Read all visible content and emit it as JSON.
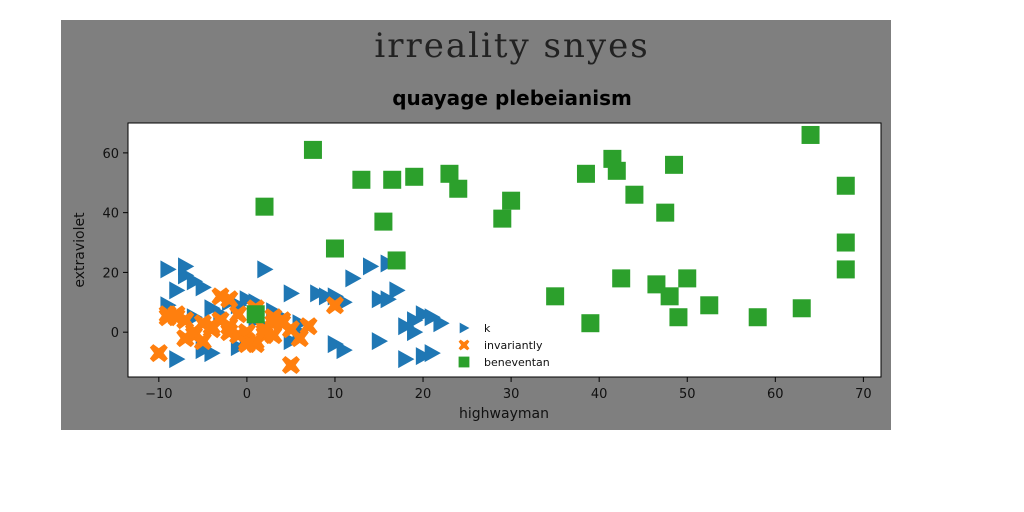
{
  "figure_title": "irreality snyes",
  "chart_data": {
    "type": "scatter",
    "title": "quayage plebeianism",
    "xlabel": "highwayman",
    "ylabel": "extraviolet",
    "xlim": [
      -13.5,
      72
    ],
    "ylim": [
      -15,
      70
    ],
    "xticks": [
      -10,
      0,
      10,
      20,
      30,
      40,
      50,
      60,
      70
    ],
    "yticks": [
      0,
      20,
      40,
      60
    ],
    "xtick_labels": [
      "−10",
      "0",
      "10",
      "20",
      "30",
      "40",
      "50",
      "60",
      "70"
    ],
    "ytick_labels": [
      "0",
      "20",
      "40",
      "60"
    ],
    "grid": false,
    "legend_position": "lower-center",
    "series": [
      {
        "name": "k",
        "marker": "triangle-right",
        "color": "#1f77b4",
        "x": [
          -9,
          -8,
          -7,
          -6,
          -5,
          -4,
          -3,
          -2,
          -1,
          0,
          1,
          2,
          3,
          4,
          5,
          6,
          8,
          9,
          10,
          11,
          12,
          14,
          15,
          16,
          17,
          18,
          19,
          20,
          21,
          22,
          -9,
          -6,
          -4,
          -1,
          2,
          5,
          10,
          15,
          18,
          20,
          -8,
          -5,
          0,
          6,
          11,
          16,
          19,
          21,
          -7,
          1
        ],
        "y": [
          21,
          14,
          19,
          17,
          15,
          8,
          6,
          10,
          9,
          11,
          10,
          21,
          7,
          5,
          13,
          3,
          13,
          12,
          12,
          10,
          18,
          22,
          11,
          11,
          14,
          2,
          4,
          6,
          5,
          3,
          9,
          5,
          -7,
          -5,
          2,
          -3,
          -4,
          -3,
          -9,
          -8,
          -9,
          -6,
          -2,
          0,
          -6,
          23,
          0,
          -7,
          22,
          4
        ]
      },
      {
        "name": "invariantly",
        "marker": "x-filled",
        "color": "#ff7f0e",
        "x": [
          -10,
          -9,
          -8,
          -7,
          -6,
          -5,
          -4,
          -3,
          -2,
          -1,
          0,
          1,
          2,
          3,
          4,
          5,
          6,
          7,
          10,
          -9,
          -6,
          -4,
          -2,
          0,
          2,
          3,
          5,
          -5,
          -1,
          1,
          4,
          -3,
          0,
          2,
          -8,
          -6,
          -7,
          -2,
          1,
          3
        ],
        "y": [
          -7,
          6,
          5,
          -2,
          0,
          -3,
          2,
          4,
          11,
          6,
          0,
          -4,
          -1,
          5,
          3,
          -11,
          -2,
          2,
          9,
          5,
          -1,
          1,
          0,
          -3,
          0,
          3,
          1,
          3,
          -1,
          -3,
          4,
          12,
          -4,
          1,
          6,
          0,
          4,
          2,
          8,
          -1
        ]
      },
      {
        "name": "beneventan",
        "marker": "square",
        "color": "#2ca02c",
        "x": [
          1,
          2,
          7.5,
          10,
          13,
          15.5,
          16.5,
          17,
          19,
          23,
          24,
          29,
          30,
          35,
          38.5,
          39,
          41.5,
          42,
          42.5,
          44,
          46.5,
          47.5,
          48,
          48.5,
          49,
          50,
          52.5,
          58,
          63,
          64,
          68,
          68,
          68
        ],
        "y": [
          6,
          42,
          61,
          28,
          51,
          37,
          51,
          24,
          52,
          53,
          48,
          38,
          44,
          12,
          53,
          3,
          58,
          54,
          18,
          46,
          16,
          40,
          12,
          56,
          5,
          18,
          9,
          5,
          8,
          66,
          49,
          30,
          21
        ]
      }
    ]
  }
}
